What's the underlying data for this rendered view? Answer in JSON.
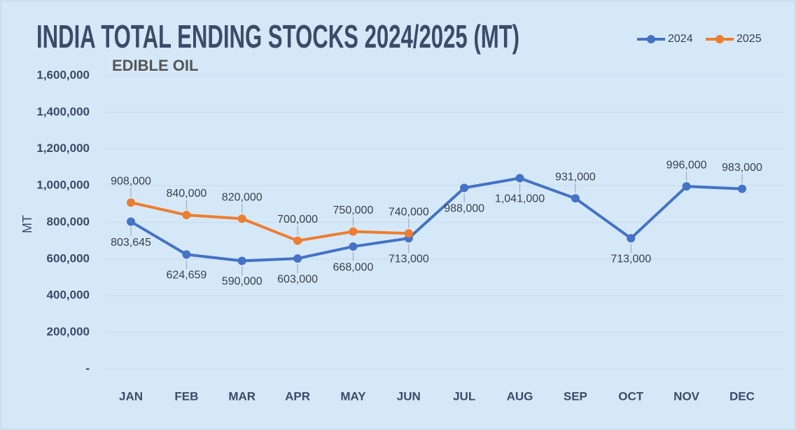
{
  "chart_data": {
    "type": "line",
    "title": "INDIA TOTAL ENDING STOCKS 2024/2025 (MT)",
    "subtitle": "EDIBLE OIL",
    "y_label": "MT",
    "categories": [
      "JAN",
      "FEB",
      "MAR",
      "APR",
      "MAY",
      "JUN",
      "JUL",
      "AUG",
      "SEP",
      "OCT",
      "NOV",
      "DEC"
    ],
    "series": [
      {
        "name": "2024",
        "color": "#4472c4",
        "values": [
          803645,
          624659,
          590000,
          603000,
          668000,
          713000,
          988000,
          1041000,
          931000,
          713000,
          996000,
          983000
        ],
        "value_labels": [
          "803,645",
          "624,659",
          "590,000",
          "603,000",
          "668,000",
          "713,000",
          "988,000",
          "1,041,000",
          "931,000",
          "713,000",
          "996,000",
          "983,000"
        ]
      },
      {
        "name": "2025",
        "color": "#ed7d31",
        "values": [
          908000,
          840000,
          820000,
          700000,
          750000,
          740000,
          null,
          null,
          null,
          null,
          null,
          null
        ],
        "value_labels": [
          "908,000",
          "840,000",
          "820,000",
          "700,000",
          "750,000",
          "740,000",
          null,
          null,
          null,
          null,
          null,
          null
        ]
      }
    ],
    "ylim": [
      0,
      1600000
    ],
    "yticks": [
      {
        "value": 0,
        "label": "-"
      },
      {
        "value": 200000,
        "label": "200,000"
      },
      {
        "value": 400000,
        "label": "400,000"
      },
      {
        "value": 600000,
        "label": "600,000"
      },
      {
        "value": 800000,
        "label": "800,000"
      },
      {
        "value": 1000000,
        "label": "1,000,000"
      },
      {
        "value": 1200000,
        "label": "1,200,000"
      },
      {
        "value": 1400000,
        "label": "1,400,000"
      },
      {
        "value": 1600000,
        "label": "1,600,000"
      }
    ],
    "grid": true,
    "legend": "top-right"
  }
}
